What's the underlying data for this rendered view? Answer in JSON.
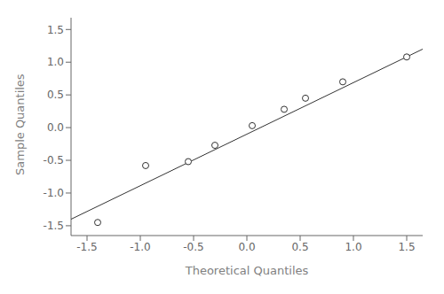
{
  "chart_data": {
    "type": "scatter",
    "xlabel": "Theoretical Quantiles",
    "ylabel": "Sample Quantiles",
    "xlim": [
      -1.65,
      1.65
    ],
    "ylim": [
      -1.65,
      1.68
    ],
    "xticks": [
      -1.5,
      {
        "value": -1.0,
        "label": "-1.0"
      },
      -0.5,
      {
        "value": 0.0,
        "label": "0.0"
      },
      0.5,
      {
        "value": 1.0,
        "label": "1.0"
      },
      1.5
    ],
    "yticks": [
      -1.5,
      {
        "value": -1.0,
        "label": "-1.0"
      },
      -0.5,
      {
        "value": 0.0,
        "label": "0.0"
      },
      0.5,
      {
        "value": 1.0,
        "label": "1.0"
      },
      1.5
    ],
    "grid": false,
    "series": [
      {
        "type": "line",
        "color": "#333333",
        "line_style": "solid",
        "x": [
          -1.65,
          1.65
        ],
        "values": [
          -1.4,
          1.2
        ]
      },
      {
        "type": "scatter",
        "color": "#333333",
        "marker": "open_circle",
        "x": [
          -1.4,
          -0.95,
          -0.55,
          -0.3,
          0.05,
          0.35,
          0.55,
          0.9,
          1.5
        ],
        "values": [
          -1.45,
          -0.58,
          -0.52,
          -0.27,
          0.03,
          0.28,
          0.45,
          0.7,
          1.08
        ]
      }
    ]
  }
}
